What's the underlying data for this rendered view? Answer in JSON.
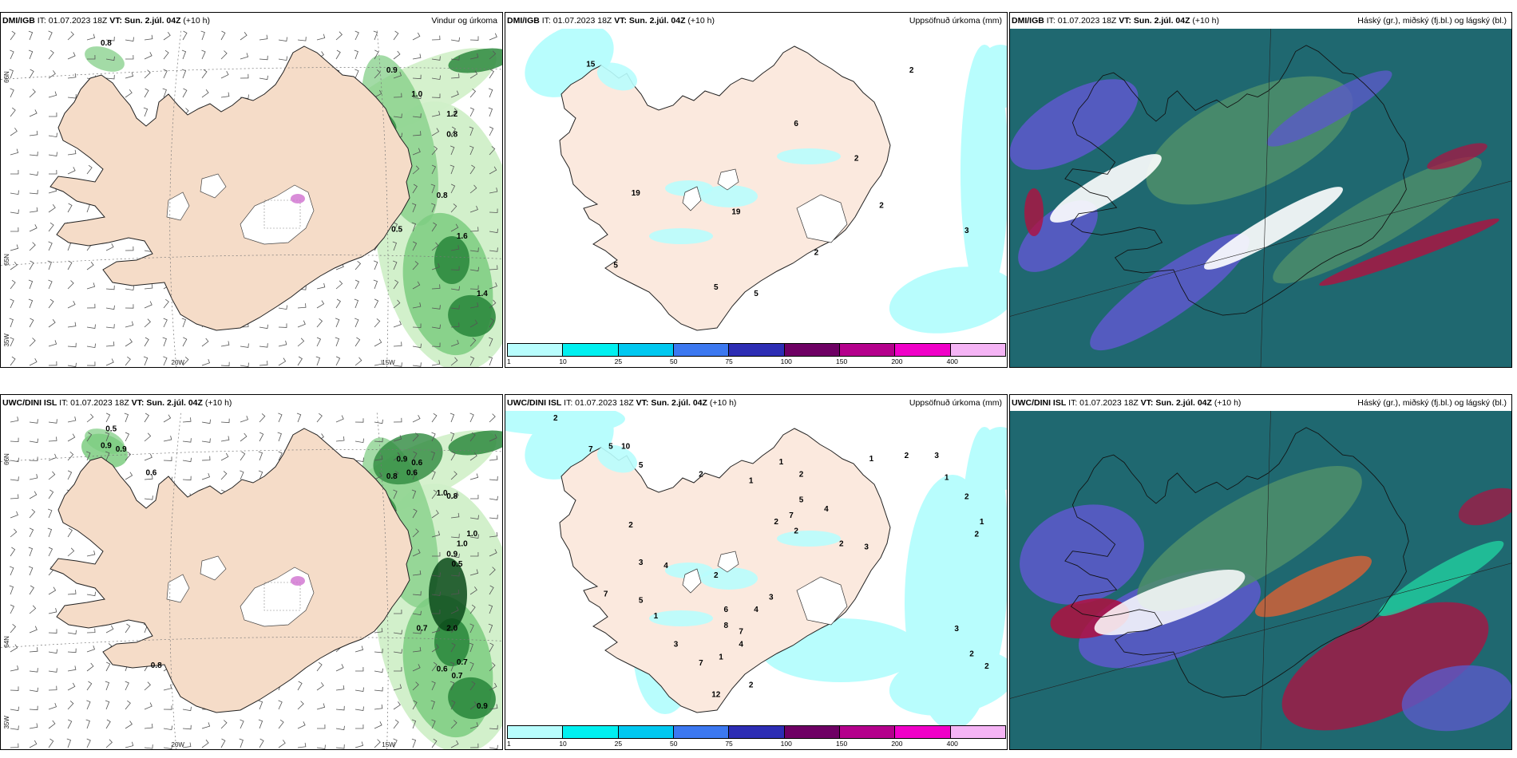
{
  "panels": [
    {
      "id": "dmi-wind",
      "header_model": "DMI/IGB",
      "header_it": " IT: 01.07.2023 18Z ",
      "header_vt": "VT: Sun. 2.júl. 04Z",
      "header_lead": " (+10 h)",
      "header_right": "Vindur og úrkoma",
      "kind": "wind",
      "values": [
        {
          "t": "0.8",
          "x": 0.21,
          "y": 0.05
        },
        {
          "t": "0.9",
          "x": 0.78,
          "y": 0.13
        },
        {
          "t": "1.0",
          "x": 0.83,
          "y": 0.2
        },
        {
          "t": "1.2",
          "x": 0.9,
          "y": 0.26
        },
        {
          "t": "0.8",
          "x": 0.9,
          "y": 0.32
        },
        {
          "t": "0.8",
          "x": 0.88,
          "y": 0.5
        },
        {
          "t": "0.5",
          "x": 0.79,
          "y": 0.6
        },
        {
          "t": "1.6",
          "x": 0.92,
          "y": 0.62
        },
        {
          "t": "1.4",
          "x": 0.96,
          "y": 0.79
        }
      ],
      "lat_labels": [
        "66N",
        "65N",
        "35W"
      ],
      "lon_labels": [
        "20W",
        "15W"
      ]
    },
    {
      "id": "dmi-precip",
      "header_model": "DMI/IGB",
      "header_it": " IT: 01.07.2023 18Z ",
      "header_vt": "VT: Sun. 2.júl. 04Z",
      "header_lead": " (+10 h)",
      "header_right": "Uppsöfnuð úrkoma (mm)",
      "kind": "precip",
      "values": [
        {
          "t": "15",
          "x": 0.17,
          "y": 0.12
        },
        {
          "t": "6",
          "x": 0.58,
          "y": 0.31
        },
        {
          "t": "2",
          "x": 0.7,
          "y": 0.42
        },
        {
          "t": "19",
          "x": 0.26,
          "y": 0.53
        },
        {
          "t": "19",
          "x": 0.46,
          "y": 0.59
        },
        {
          "t": "2",
          "x": 0.75,
          "y": 0.57
        },
        {
          "t": "3",
          "x": 0.92,
          "y": 0.65
        },
        {
          "t": "5",
          "x": 0.22,
          "y": 0.76
        },
        {
          "t": "5",
          "x": 0.42,
          "y": 0.83
        },
        {
          "t": "5",
          "x": 0.5,
          "y": 0.85
        },
        {
          "t": "2",
          "x": 0.81,
          "y": 0.14
        },
        {
          "t": "2",
          "x": 0.62,
          "y": 0.72
        }
      ],
      "colorbar": [
        "1",
        "10",
        "25",
        "50",
        "75",
        "100",
        "150",
        "200",
        "400"
      ],
      "colorbar_colors": [
        "#b8fdfd",
        "#00f0f0",
        "#00c8f0",
        "#3c78f0",
        "#2d2db4",
        "#6e0064",
        "#b4008c",
        "#f000c8",
        "#f5b4f5"
      ]
    },
    {
      "id": "dmi-cloud",
      "header_model": "DMI/IGB",
      "header_it": " IT: 01.07.2023 18Z ",
      "header_vt": "VT: Sun. 2.júl. 04Z",
      "header_lead": " (+10 h)",
      "header_right": "Háský (gr.), miðský (fj.bl.) og lágský (bl.)",
      "kind": "cloud"
    },
    {
      "id": "uwc-wind",
      "header_model": "UWC/DINI ISL",
      "header_it": " IT: 01.07.2023 18Z ",
      "header_vt": "VT: Sun. 2.júl. 04Z",
      "header_lead": " (+10 h)",
      "header_right": "",
      "kind": "wind",
      "values": [
        {
          "t": "0.5",
          "x": 0.22,
          "y": 0.06
        },
        {
          "t": "0.9",
          "x": 0.21,
          "y": 0.11
        },
        {
          "t": "0.9",
          "x": 0.24,
          "y": 0.12
        },
        {
          "t": "0.6",
          "x": 0.3,
          "y": 0.19
        },
        {
          "t": "0.9",
          "x": 0.8,
          "y": 0.15
        },
        {
          "t": "0.6",
          "x": 0.83,
          "y": 0.16
        },
        {
          "t": "0.8",
          "x": 0.78,
          "y": 0.2
        },
        {
          "t": "0.6",
          "x": 0.82,
          "y": 0.19
        },
        {
          "t": "1.0",
          "x": 0.88,
          "y": 0.25
        },
        {
          "t": "0.8",
          "x": 0.9,
          "y": 0.26
        },
        {
          "t": "1.0",
          "x": 0.94,
          "y": 0.37
        },
        {
          "t": "1.0",
          "x": 0.92,
          "y": 0.4
        },
        {
          "t": "0.9",
          "x": 0.9,
          "y": 0.43
        },
        {
          "t": "0.5",
          "x": 0.91,
          "y": 0.46
        },
        {
          "t": "0.7",
          "x": 0.84,
          "y": 0.65
        },
        {
          "t": "2.0",
          "x": 0.9,
          "y": 0.65
        },
        {
          "t": "0.7",
          "x": 0.92,
          "y": 0.75
        },
        {
          "t": "0.6",
          "x": 0.88,
          "y": 0.77
        },
        {
          "t": "0.7",
          "x": 0.91,
          "y": 0.79
        },
        {
          "t": "0.8",
          "x": 0.31,
          "y": 0.76
        },
        {
          "t": "0.9",
          "x": 0.96,
          "y": 0.88
        }
      ],
      "lat_labels": [
        "66N",
        "64N",
        "35W"
      ],
      "lon_labels": [
        "20W",
        "15W"
      ]
    },
    {
      "id": "uwc-precip",
      "header_model": "UWC/DINI ISL",
      "header_it": " IT: 01.07.2023 18Z ",
      "header_vt": "VT: Sun. 2.júl. 04Z",
      "header_lead": " (+10 h)",
      "header_right": "Uppsöfnuð úrkoma (mm)",
      "kind": "precip",
      "values": [
        {
          "t": "2",
          "x": 0.1,
          "y": 0.03
        },
        {
          "t": "7",
          "x": 0.17,
          "y": 0.13
        },
        {
          "t": "5",
          "x": 0.21,
          "y": 0.12
        },
        {
          "t": "10",
          "x": 0.24,
          "y": 0.12
        },
        {
          "t": "5",
          "x": 0.27,
          "y": 0.18
        },
        {
          "t": "2",
          "x": 0.39,
          "y": 0.21
        },
        {
          "t": "1",
          "x": 0.49,
          "y": 0.23
        },
        {
          "t": "1",
          "x": 0.55,
          "y": 0.17
        },
        {
          "t": "2",
          "x": 0.59,
          "y": 0.21
        },
        {
          "t": "5",
          "x": 0.59,
          "y": 0.29
        },
        {
          "t": "4",
          "x": 0.64,
          "y": 0.32
        },
        {
          "t": "7",
          "x": 0.57,
          "y": 0.34
        },
        {
          "t": "2",
          "x": 0.54,
          "y": 0.36
        },
        {
          "t": "2",
          "x": 0.58,
          "y": 0.39
        },
        {
          "t": "2",
          "x": 0.25,
          "y": 0.37
        },
        {
          "t": "3",
          "x": 0.27,
          "y": 0.49
        },
        {
          "t": "4",
          "x": 0.32,
          "y": 0.5
        },
        {
          "t": "7",
          "x": 0.2,
          "y": 0.59
        },
        {
          "t": "5",
          "x": 0.27,
          "y": 0.61
        },
        {
          "t": "1",
          "x": 0.3,
          "y": 0.66
        },
        {
          "t": "2",
          "x": 0.42,
          "y": 0.53
        },
        {
          "t": "6",
          "x": 0.44,
          "y": 0.64
        },
        {
          "t": "4",
          "x": 0.5,
          "y": 0.64
        },
        {
          "t": "8",
          "x": 0.44,
          "y": 0.69
        },
        {
          "t": "7",
          "x": 0.47,
          "y": 0.71
        },
        {
          "t": "3",
          "x": 0.53,
          "y": 0.6
        },
        {
          "t": "4",
          "x": 0.47,
          "y": 0.75
        },
        {
          "t": "3",
          "x": 0.34,
          "y": 0.75
        },
        {
          "t": "7",
          "x": 0.39,
          "y": 0.81
        },
        {
          "t": "1",
          "x": 0.43,
          "y": 0.79
        },
        {
          "t": "12",
          "x": 0.42,
          "y": 0.91
        },
        {
          "t": "2",
          "x": 0.49,
          "y": 0.88
        },
        {
          "t": "2",
          "x": 0.67,
          "y": 0.43
        },
        {
          "t": "3",
          "x": 0.72,
          "y": 0.44
        },
        {
          "t": "1",
          "x": 0.73,
          "y": 0.16
        },
        {
          "t": "2",
          "x": 0.8,
          "y": 0.15
        },
        {
          "t": "3",
          "x": 0.86,
          "y": 0.15
        },
        {
          "t": "1",
          "x": 0.88,
          "y": 0.22
        },
        {
          "t": "2",
          "x": 0.92,
          "y": 0.28
        },
        {
          "t": "1",
          "x": 0.95,
          "y": 0.36
        },
        {
          "t": "2",
          "x": 0.94,
          "y": 0.4
        },
        {
          "t": "3",
          "x": 0.9,
          "y": 0.7
        },
        {
          "t": "2",
          "x": 0.93,
          "y": 0.78
        },
        {
          "t": "2",
          "x": 0.96,
          "y": 0.82
        }
      ],
      "colorbar": [
        "1",
        "10",
        "25",
        "50",
        "75",
        "100",
        "150",
        "200",
        "400"
      ],
      "colorbar_colors": [
        "#b8fdfd",
        "#00f0f0",
        "#00c8f0",
        "#3c78f0",
        "#2d2db4",
        "#6e0064",
        "#b4008c",
        "#f000c8",
        "#f5b4f5"
      ]
    },
    {
      "id": "uwc-cloud",
      "header_model": "UWC/DINI ISL",
      "header_it": " IT: 01.07.2023 18Z ",
      "header_vt": "VT: Sun. 2.júl. 04Z",
      "header_lead": " (+10 h)",
      "header_right": "Háský (gr.), miðský (fj.bl.) og lágský (bl.)",
      "kind": "cloud"
    }
  ],
  "colors": {
    "land": "#f5dcc8",
    "land_precip": "#fbe9de",
    "ice": "#ffffff",
    "precip_light": "#b8fdfd",
    "rain_green_1": "#d0efc8",
    "rain_green_2": "#7ccc80",
    "rain_green_3": "#2e8a3e",
    "rain_green_4": "#0a4a1a",
    "cloud_high": "#4f8f6a",
    "cloud_mid": "#5a5ac8",
    "cloud_low": "#1f6870",
    "cloud_red": "#b01040"
  }
}
